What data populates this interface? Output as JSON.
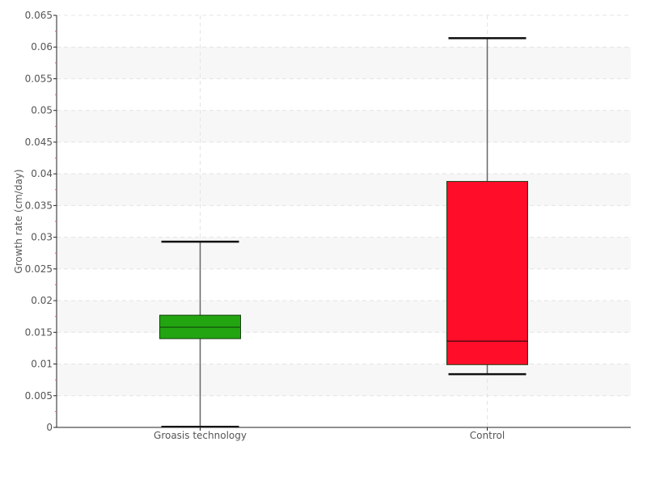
{
  "chart_data": {
    "type": "box",
    "title": "",
    "xlabel": "",
    "ylabel": "Growth rate (cm/day)",
    "ylim": [
      0,
      0.065
    ],
    "ytick_step": 0.005,
    "ytick_labels": [
      "0",
      "0.005",
      "0.01",
      "0.015",
      "0.02",
      "0.025",
      "0.03",
      "0.035",
      "0.04",
      "0.045",
      "0.05",
      "0.055",
      "0.06",
      "0.065"
    ],
    "grid": true,
    "categories": [
      "Groasis technology",
      "Control"
    ],
    "boxes": [
      {
        "category": "Groasis technology",
        "min": 0.0001,
        "q1": 0.014,
        "median": 0.0158,
        "q3": 0.0177,
        "max": 0.0293,
        "color": "#22a511"
      },
      {
        "category": "Control",
        "min": 0.0084,
        "q1": 0.0099,
        "median": 0.0136,
        "q3": 0.0388,
        "max": 0.0614,
        "color": "#ff0d29"
      }
    ]
  }
}
